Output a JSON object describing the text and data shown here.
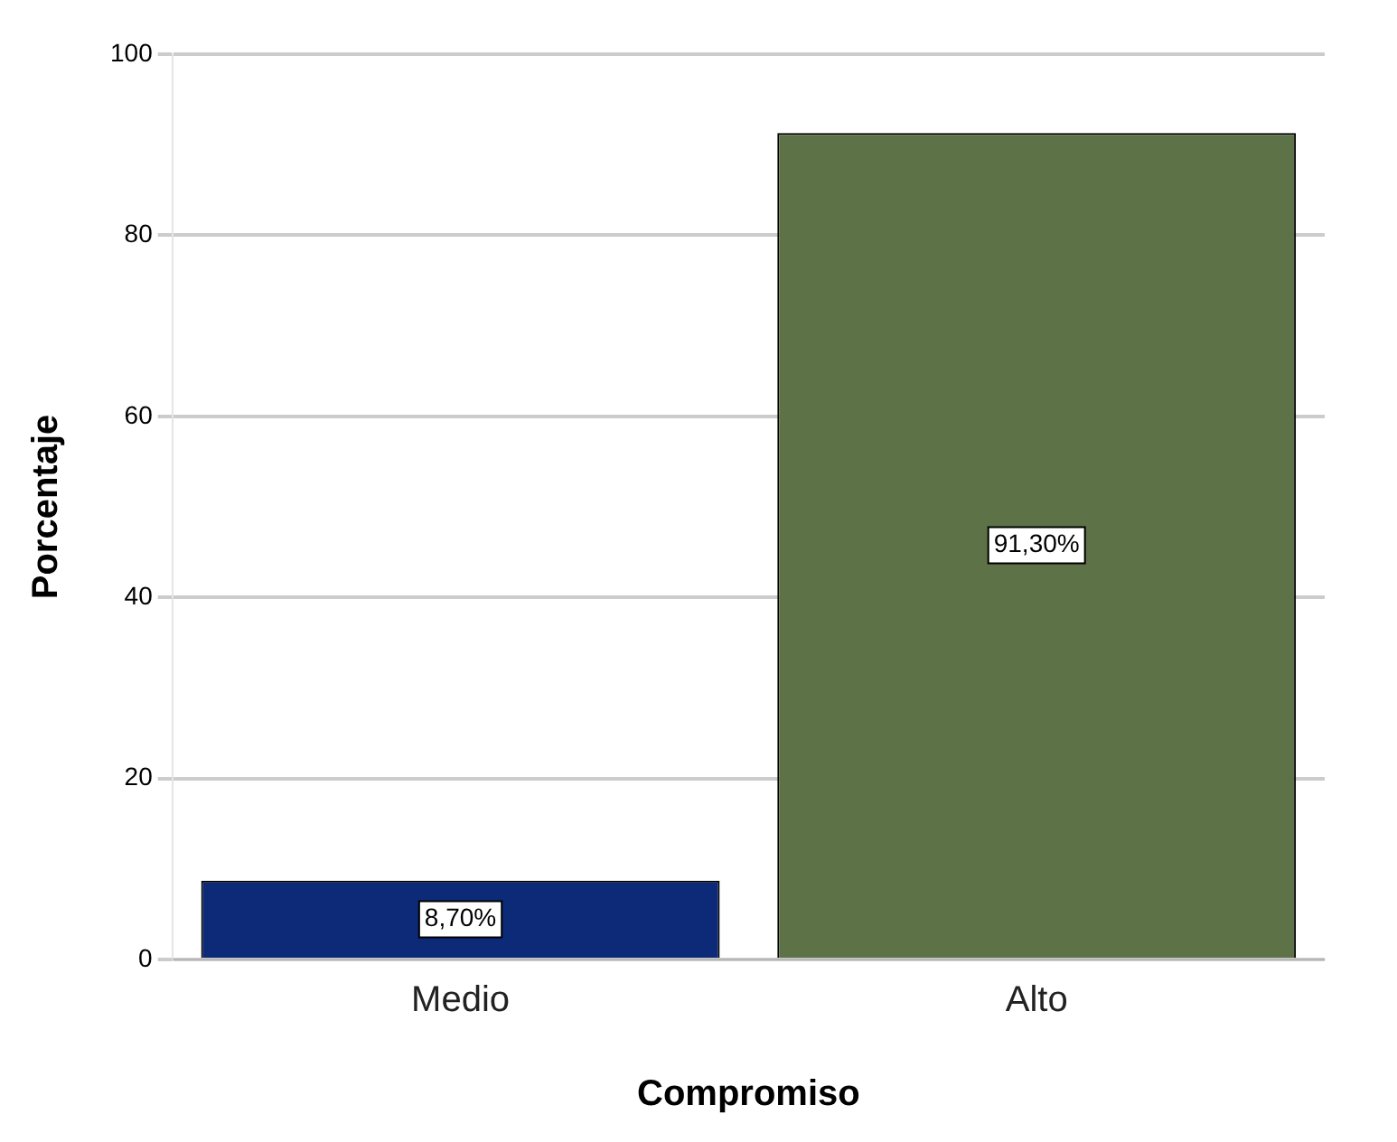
{
  "chart_data": {
    "type": "bar",
    "xlabel": "Compromiso",
    "ylabel": "Porcentaje",
    "categories": [
      "Medio",
      "Alto"
    ],
    "values": [
      8.7,
      91.3
    ],
    "colors": [
      "#0c2a78",
      "#5e7248"
    ],
    "value_labels": [
      "8,70%",
      "91,30%"
    ],
    "ylim": [
      0,
      100
    ],
    "yticks": [
      0,
      20,
      40,
      60,
      80,
      100
    ],
    "grid": "y",
    "legend": false
  }
}
